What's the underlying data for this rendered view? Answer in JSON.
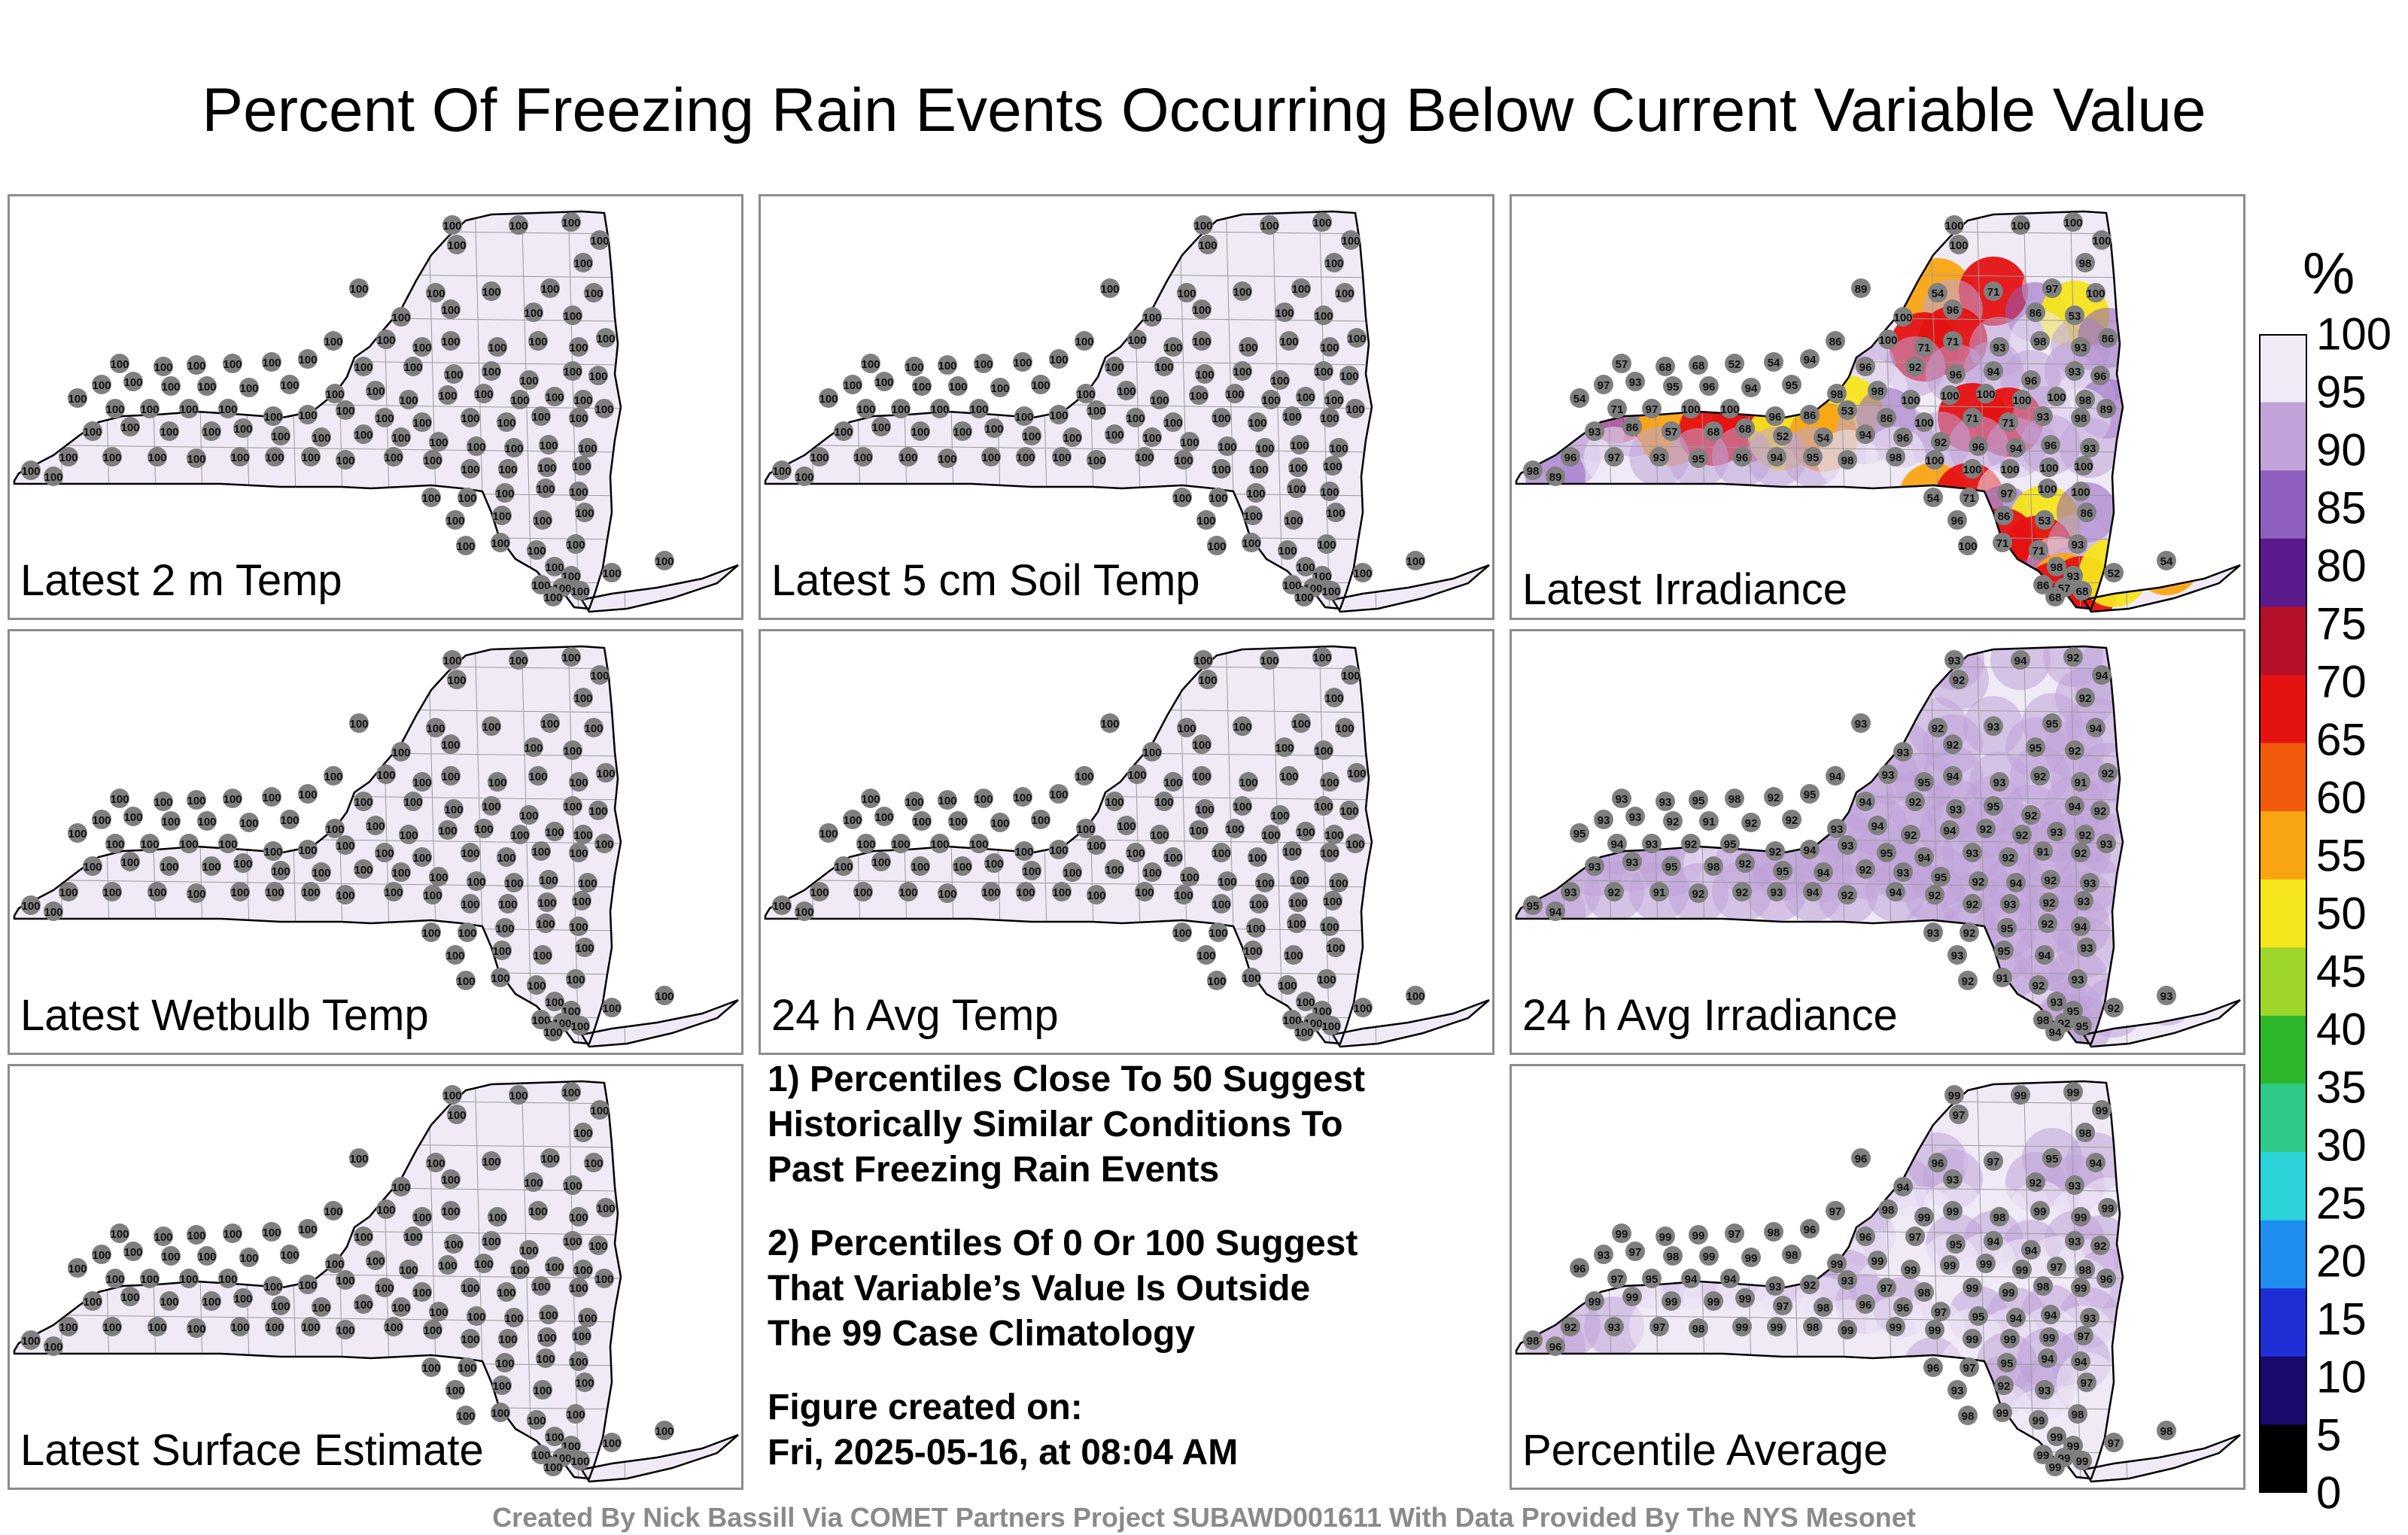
{
  "title": "Percent Of Freezing Rain Events Occurring Below Current Variable Value",
  "colorbar": {
    "unit": "%",
    "ticks": [
      "100",
      "95",
      "90",
      "85",
      "80",
      "75",
      "70",
      "65",
      "60",
      "55",
      "50",
      "45",
      "40",
      "35",
      "30",
      "25",
      "20",
      "15",
      "10",
      "5",
      "0"
    ],
    "range": [
      0,
      100
    ],
    "colors": [
      "#000000",
      "#1a0a6e",
      "#1f2fd6",
      "#1e8ef0",
      "#2bd3d9",
      "#2fc98a",
      "#2db82c",
      "#9fd62a",
      "#f5e51c",
      "#f9a512",
      "#f25b0d",
      "#e51212",
      "#b5102a",
      "#5a1a8c",
      "#8f5fbf",
      "#c0a3d8",
      "#efeaf5"
    ]
  },
  "panels": [
    {
      "id": "latest-2m-temp",
      "label": "Latest 2 m Temp",
      "values": [
        100
      ]
    },
    {
      "id": "latest-5cm-soil-temp",
      "label": "Latest 5 cm Soil Temp",
      "values": [
        100
      ]
    },
    {
      "id": "latest-irradiance",
      "label": "Latest Irradiance",
      "values": [
        100,
        100,
        100,
        100,
        100,
        98,
        89,
        54,
        71,
        97,
        100,
        100,
        96,
        86,
        53,
        86,
        100,
        71,
        71,
        93,
        98,
        93,
        86,
        57,
        68,
        68,
        52,
        54,
        94,
        96,
        92,
        96,
        94,
        96,
        93,
        96,
        97,
        93,
        95,
        96,
        94,
        95,
        98,
        98
      ]
    },
    {
      "id": "latest-wetbulb-temp",
      "label": "Latest Wetbulb Temp",
      "values": [
        100
      ]
    },
    {
      "id": "24h-avg-temp",
      "label": "24 h Avg Temp",
      "values": [
        100
      ]
    },
    {
      "id": "24h-avg-irradiance",
      "label": "24 h Avg Irradiance",
      "values": [
        93,
        94,
        92,
        94,
        92,
        92,
        93,
        92,
        93,
        95,
        94,
        93,
        92,
        95,
        92,
        94,
        93,
        95,
        94,
        93,
        92,
        91,
        92,
        93,
        93,
        95,
        98,
        92,
        95,
        94,
        92,
        93,
        95,
        92,
        94,
        92,
        93,
        93,
        92,
        91,
        92,
        92
      ]
    },
    {
      "id": "percentile-average",
      "label": "Percentile Average",
      "values": [
        99,
        99,
        99,
        99,
        97,
        98,
        96,
        96,
        97,
        95,
        94,
        94,
        93,
        92,
        93,
        97,
        98,
        99,
        99,
        98,
        99,
        99
      ]
    }
  ],
  "notes": {
    "note1": [
      "1) Percentiles Close To 50 Suggest",
      "Historically Similar Conditions To",
      "Past Freezing Rain Events"
    ],
    "note2": [
      "2) Percentiles Of 0 Or 100 Suggest",
      "That Variable’s Value Is Outside",
      "The 99 Case Climatology"
    ],
    "created_label": "Figure created on:",
    "created_date": "Fri, 2025-05-16, at 08:04 AM"
  },
  "credit": "Created By Nick Bassill Via COMET Partners Project SUBAWD001611 With Data Provided By The NYS Mesonet"
}
